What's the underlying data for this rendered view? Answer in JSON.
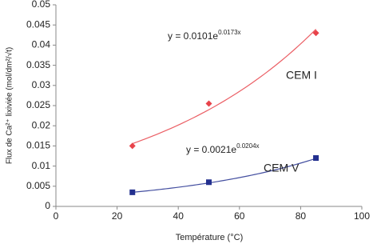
{
  "chart_data": {
    "type": "scatter",
    "x_label": "Température (°C)",
    "y_label": "Flux de Ca²⁺ lixiviée (mol/dm²/√t)",
    "xlim": [
      0,
      100
    ],
    "xticks": [
      0,
      20,
      40,
      60,
      80,
      100
    ],
    "ylim": [
      0,
      0.05
    ],
    "yticks": [
      0,
      0.005,
      0.01,
      0.015,
      0.02,
      0.025,
      0.03,
      0.035,
      0.04,
      0.045,
      0.05
    ],
    "grid": false,
    "series": [
      {
        "name": "CEM I",
        "color": "#e8434a",
        "marker": "diamond",
        "x": [
          25,
          50,
          85
        ],
        "values": [
          0.015,
          0.0255,
          0.043
        ],
        "trend": {
          "a": 0.0101,
          "b": 0.0173,
          "equation": "y = 0.0101e",
          "exponent": "0.0173x"
        }
      },
      {
        "name": "CEM V",
        "color": "#23308f",
        "marker": "square",
        "x": [
          25,
          50,
          85
        ],
        "values": [
          0.0035,
          0.006,
          0.012
        ],
        "trend": {
          "a": 0.0021,
          "b": 0.0204,
          "equation": "y = 0.0021e",
          "exponent": "0.0204x"
        }
      }
    ]
  }
}
